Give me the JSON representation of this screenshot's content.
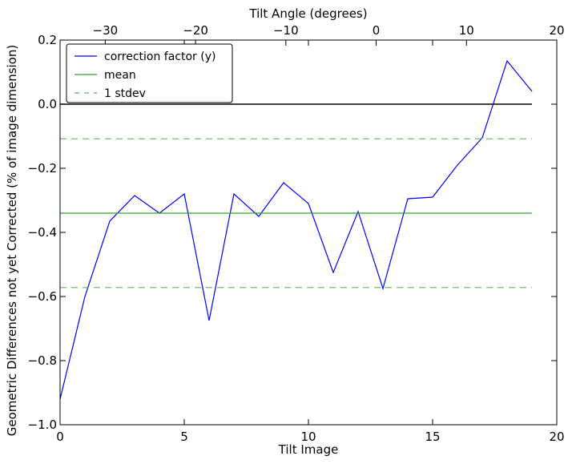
{
  "chart_data": {
    "type": "line",
    "xlabel": "Tilt Image",
    "ylabel": "Geometric Differences not yet Corrected (% of image dimension)",
    "x2label": "Tilt Angle (degrees)",
    "xlim": [
      0,
      20
    ],
    "ylim": [
      -1.0,
      0.2
    ],
    "x2lim": [
      -35,
      20
    ],
    "xticks": [
      0,
      5,
      10,
      15,
      20
    ],
    "xticklabels": [
      "0",
      "5",
      "10",
      "15",
      "20"
    ],
    "yticks": [
      -1.0,
      -0.8,
      -0.6,
      -0.4,
      -0.2,
      0.0,
      0.2
    ],
    "yticklabels": [
      "−1.0",
      "−0.8",
      "−0.6",
      "−0.4",
      "−0.2",
      "0.0",
      "0.2"
    ],
    "x2ticks": [
      -30,
      -20,
      -10,
      0,
      10,
      20
    ],
    "x2ticklabels": [
      "−30",
      "−20",
      "−10",
      "0",
      "10",
      "20"
    ],
    "grid": false,
    "legend_position": "top-left",
    "zero_line": 0.0,
    "series": [
      {
        "name": "correction factor (y)",
        "color": "#0000ff",
        "style": "solid",
        "x": [
          0,
          1,
          2,
          3,
          4,
          5,
          6,
          7,
          8,
          9,
          10,
          11,
          12,
          13,
          14,
          15,
          16,
          17,
          18,
          19
        ],
        "y": [
          -0.92,
          -0.6,
          -0.365,
          -0.285,
          -0.34,
          -0.28,
          -0.675,
          -0.28,
          -0.35,
          -0.245,
          -0.31,
          -0.525,
          -0.335,
          -0.575,
          -0.295,
          -0.29,
          -0.19,
          -0.105,
          0.135,
          0.04
        ]
      },
      {
        "name": "mean",
        "color": "#2ca02c",
        "style": "solid",
        "x": [
          0,
          19
        ],
        "y": [
          -0.34,
          -0.34
        ]
      },
      {
        "name": "1 stdev",
        "color": "#5cb85c",
        "style": "dashed",
        "x": [
          0,
          19
        ],
        "y": [
          -0.108,
          -0.108
        ]
      },
      {
        "name": "",
        "color": "#5cb85c",
        "style": "dashed",
        "x": [
          0,
          19
        ],
        "y": [
          -0.572,
          -0.572
        ]
      }
    ]
  }
}
